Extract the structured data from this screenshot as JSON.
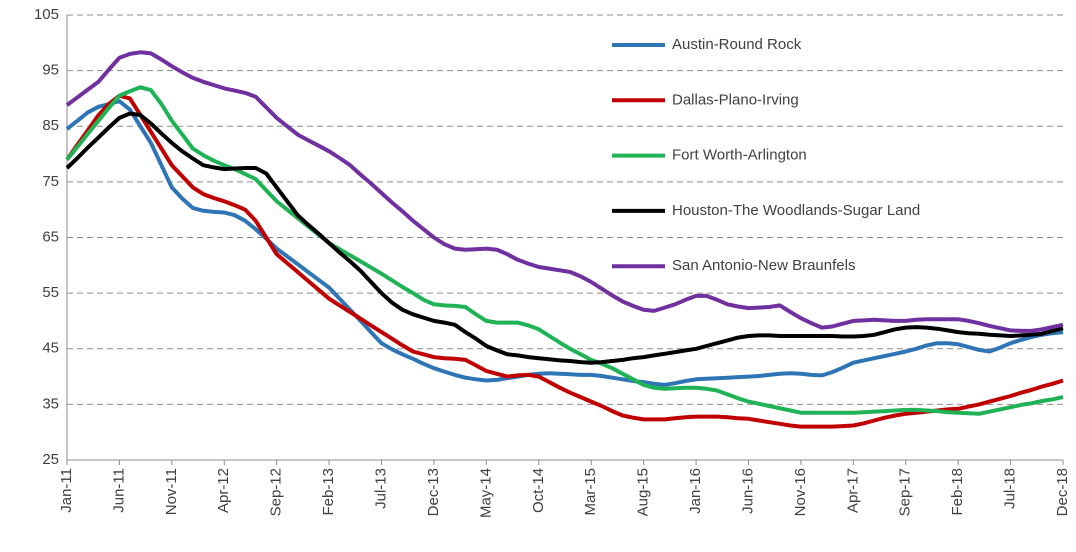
{
  "chart_data": {
    "type": "line",
    "categories": [
      "Jan-11",
      null,
      null,
      null,
      null,
      "Jun-11",
      null,
      null,
      null,
      null,
      "Nov-11",
      null,
      null,
      null,
      null,
      "Apr-12",
      null,
      null,
      null,
      null,
      "Sep-12",
      null,
      null,
      null,
      null,
      "Feb-13",
      null,
      null,
      null,
      null,
      "Jul-13",
      null,
      null,
      null,
      null,
      "Dec-13",
      null,
      null,
      null,
      null,
      "May-14",
      null,
      null,
      null,
      null,
      "Oct-14",
      null,
      null,
      null,
      null,
      "Mar-15",
      null,
      null,
      null,
      null,
      "Aug-15",
      null,
      null,
      null,
      null,
      "Jan-16",
      null,
      null,
      null,
      null,
      "Jun-16",
      null,
      null,
      null,
      null,
      "Nov-16",
      null,
      null,
      null,
      null,
      "Apr-17",
      null,
      null,
      null,
      null,
      "Sep-17",
      null,
      null,
      null,
      null,
      "Feb-18",
      null,
      null,
      null,
      null,
      "Jul-18",
      null,
      null,
      null,
      null,
      "Dec-18"
    ],
    "series": [
      {
        "name": "Austin-Round Rock",
        "color": "#2e75b6",
        "values": [
          84.5,
          86,
          87.5,
          88.5,
          89,
          89.5,
          88,
          85,
          82,
          78,
          74,
          72,
          70.3,
          69.8,
          69.6,
          69.5,
          69,
          68,
          66.5,
          64.8,
          63,
          61.6,
          60.2,
          58.8,
          57.4,
          56,
          54,
          52,
          50,
          48,
          46,
          44.9,
          44,
          43.2,
          42.3,
          41.5,
          40.9,
          40.3,
          39.8,
          39.5,
          39.3,
          39.4,
          39.7,
          40,
          40.3,
          40.5,
          40.6,
          40.5,
          40.4,
          40.3,
          40.3,
          40.1,
          39.8,
          39.5,
          39.2,
          39,
          38.7,
          38.5,
          38.8,
          39.2,
          39.5,
          39.6,
          39.7,
          39.8,
          39.9,
          40,
          40.1,
          40.3,
          40.5,
          40.6,
          40.5,
          40.3,
          40.2,
          40.8,
          41.6,
          42.5,
          42.9,
          43.3,
          43.7,
          44.1,
          44.5,
          45,
          45.6,
          46,
          46,
          45.8,
          45.3,
          44.8,
          44.5,
          45.2,
          46,
          46.6,
          47.1,
          47.5,
          47.8,
          48
        ]
      },
      {
        "name": "Dallas-Plano-Irving",
        "color": "#c00000",
        "values": [
          79,
          81.7,
          84.3,
          87,
          89,
          90.5,
          90,
          87,
          84,
          81,
          78,
          76,
          74,
          72.8,
          72.1,
          71.5,
          70.8,
          70,
          68,
          65,
          62,
          60.4,
          58.8,
          57.2,
          55.6,
          54,
          52.8,
          51.6,
          50.4,
          49.2,
          48,
          46.8,
          45.6,
          44.5,
          44,
          43.5,
          43.3,
          43.2,
          43,
          42,
          41,
          40.5,
          40,
          40.2,
          40.3,
          40,
          39,
          38,
          37.1,
          36.3,
          35.5,
          34.7,
          33.8,
          33,
          32.6,
          32.3,
          32.3,
          32.3,
          32.5,
          32.7,
          32.8,
          32.8,
          32.8,
          32.7,
          32.5,
          32.4,
          32.1,
          31.8,
          31.5,
          31.2,
          31,
          31,
          31,
          31,
          31.1,
          31.2,
          31.6,
          32.1,
          32.6,
          33,
          33.3,
          33.5,
          33.7,
          33.9,
          34.1,
          34.2,
          34.6,
          35,
          35.5,
          36,
          36.5,
          37.1,
          37.6,
          38.2,
          38.7,
          39.3
        ]
      },
      {
        "name": "Fort Worth-Arlington",
        "color": "#1fb356",
        "values": [
          79,
          81.3,
          83.7,
          86,
          88.3,
          90.5,
          91.3,
          92,
          91.5,
          89,
          86,
          83.5,
          81,
          79.8,
          78.8,
          78,
          77.3,
          76.4,
          75.5,
          73.5,
          71.5,
          70,
          68.5,
          67,
          65.5,
          64,
          62.9,
          61.8,
          60.7,
          59.6,
          58.5,
          57.3,
          56.1,
          55,
          53.8,
          53,
          52.8,
          52.7,
          52.5,
          51.2,
          50,
          49.7,
          49.7,
          49.7,
          49.2,
          48.5,
          47.3,
          46.1,
          45,
          44,
          43,
          42.3,
          41.5,
          40.5,
          39.5,
          38.5,
          38,
          37.8,
          37.9,
          38,
          38,
          37.8,
          37.5,
          36.8,
          36.1,
          35.5,
          35.1,
          34.7,
          34.3,
          33.9,
          33.5,
          33.5,
          33.5,
          33.5,
          33.5,
          33.5,
          33.6,
          33.7,
          33.8,
          33.9,
          34,
          34,
          33.9,
          33.8,
          33.6,
          33.5,
          33.4,
          33.3,
          33.7,
          34.1,
          34.5,
          34.9,
          35.2,
          35.6,
          35.9,
          36.3
        ]
      },
      {
        "name": "Houston-The Woodlands-Sugar Land",
        "color": "#000000",
        "values": [
          77.5,
          79.3,
          81.2,
          83,
          84.8,
          86.5,
          87.3,
          87,
          85.5,
          83.7,
          82,
          80.5,
          79.2,
          78,
          77.6,
          77.3,
          77.4,
          77.5,
          77.5,
          76.5,
          74,
          71.5,
          69,
          67.3,
          65.7,
          64,
          62.3,
          60.7,
          59,
          57,
          55,
          53.3,
          52,
          51.2,
          50.6,
          50,
          49.7,
          49.3,
          48,
          46.8,
          45.5,
          44.7,
          44,
          43.8,
          43.5,
          43.3,
          43.1,
          42.9,
          42.8,
          42.6,
          42.5,
          42.6,
          42.8,
          43,
          43.3,
          43.5,
          43.8,
          44.1,
          44.4,
          44.7,
          45,
          45.5,
          46,
          46.5,
          47,
          47.3,
          47.4,
          47.4,
          47.3,
          47.3,
          47.3,
          47.3,
          47.3,
          47.3,
          47.2,
          47.2,
          47.3,
          47.5,
          48,
          48.5,
          48.8,
          48.9,
          48.8,
          48.6,
          48.3,
          48,
          47.8,
          47.7,
          47.5,
          47.4,
          47.3,
          47.4,
          47.5,
          47.7,
          48.2,
          48.7
        ]
      },
      {
        "name": "San Antonio-New Braunfels",
        "color": "#7030a0",
        "values": [
          88.8,
          90.2,
          91.6,
          93,
          95.2,
          97.3,
          98,
          98.3,
          98.1,
          97,
          95.8,
          94.7,
          93.7,
          93,
          92.4,
          91.8,
          91.4,
          91,
          90.3,
          88.4,
          86.5,
          85,
          83.5,
          82.5,
          81.5,
          80.5,
          79.3,
          78,
          76.3,
          74.7,
          73,
          71.3,
          69.7,
          68,
          66.5,
          65,
          63.8,
          63,
          62.8,
          62.9,
          63,
          62.8,
          62,
          61,
          60.3,
          59.7,
          59.4,
          59.1,
          58.8,
          58,
          57,
          55.8,
          54.6,
          53.5,
          52.7,
          52,
          51.8,
          52.4,
          53,
          53.8,
          54.5,
          54.5,
          53.8,
          53,
          52.6,
          52.3,
          52.4,
          52.5,
          52.8,
          51.6,
          50.5,
          49.6,
          48.8,
          49,
          49.5,
          50,
          50.1,
          50.2,
          50.1,
          50,
          50,
          50.2,
          50.3,
          50.3,
          50.3,
          50.3,
          50,
          49.6,
          49.1,
          48.7,
          48.3,
          48.2,
          48.2,
          48.5,
          48.9,
          49.3
        ]
      }
    ],
    "ylim": [
      25,
      105
    ],
    "yticks": [
      25,
      35,
      45,
      55,
      65,
      75,
      85,
      95,
      105
    ],
    "grid": true,
    "legend": "upper right"
  }
}
